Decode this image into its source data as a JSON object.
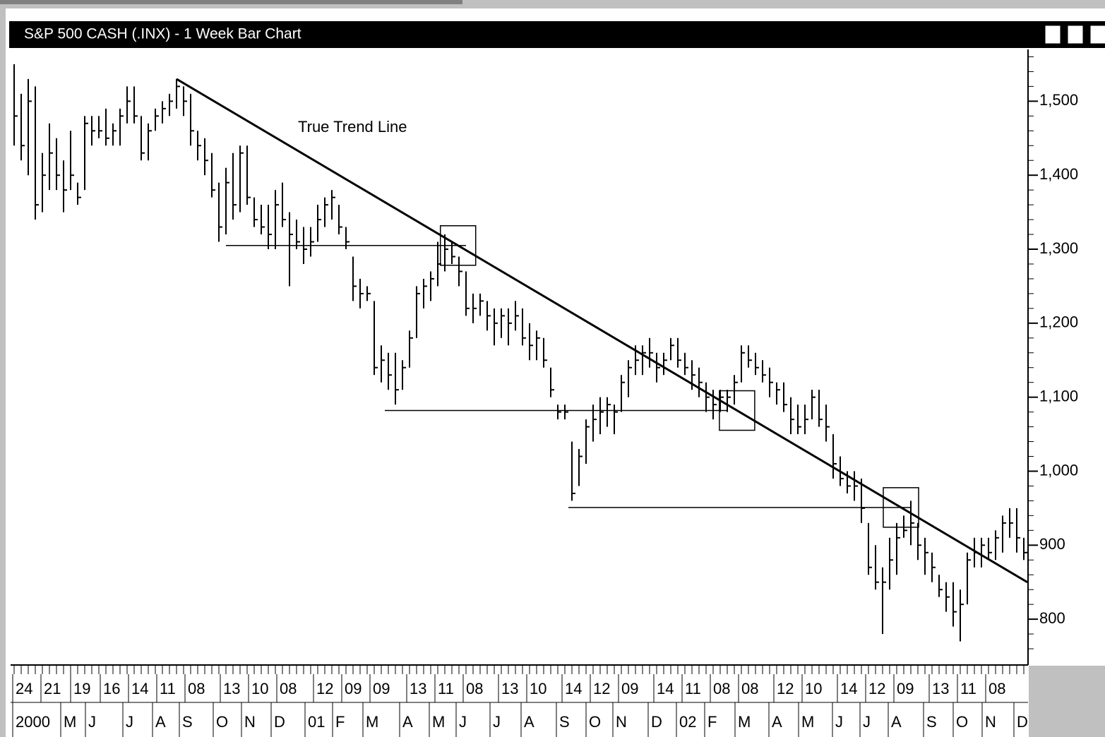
{
  "chart_data": {
    "type": "ohlc",
    "title": "S&P 500 CASH (.INX) - 1 Week Bar Chart",
    "color": "#000000",
    "high": [
      1550,
      1510,
      1530,
      1520,
      1430,
      1470,
      1450,
      1420,
      1460,
      1390,
      1480,
      1480,
      1480,
      1490,
      1470,
      1490,
      1520,
      1520,
      1480,
      1470,
      1490,
      1500,
      1510,
      1530,
      1520,
      1510,
      1460,
      1450,
      1430,
      1390,
      1410,
      1430,
      1440,
      1440,
      1370,
      1360,
      1360,
      1380,
      1390,
      1350,
      1340,
      1330,
      1330,
      1360,
      1370,
      1380,
      1360,
      1330,
      1290,
      1260,
      1250,
      1230,
      1170,
      1160,
      1160,
      1150,
      1190,
      1250,
      1260,
      1270,
      1310,
      1320,
      1310,
      1290,
      1270,
      1240,
      1240,
      1230,
      1220,
      1220,
      1220,
      1230,
      1220,
      1200,
      1190,
      1180,
      1140,
      1090,
      1090,
      1040,
      1030,
      1070,
      1090,
      1100,
      1100,
      1090,
      1130,
      1150,
      1170,
      1170,
      1180,
      1160,
      1160,
      1180,
      1180,
      1160,
      1150,
      1140,
      1120,
      1110,
      1110,
      1110,
      1130,
      1170,
      1170,
      1160,
      1150,
      1140,
      1120,
      1120,
      1100,
      1090,
      1090,
      1110,
      1110,
      1090,
      1050,
      1020,
      1000,
      1000,
      990,
      930,
      900,
      870,
      910,
      930,
      940,
      960,
      930,
      910,
      890,
      860,
      850,
      850,
      840,
      890,
      910,
      910,
      910,
      920,
      940,
      950,
      950,
      910
    ],
    "low": [
      1440,
      1420,
      1400,
      1340,
      1350,
      1380,
      1380,
      1350,
      1380,
      1360,
      1380,
      1440,
      1450,
      1440,
      1440,
      1440,
      1470,
      1470,
      1420,
      1420,
      1460,
      1470,
      1480,
      1490,
      1480,
      1440,
      1420,
      1400,
      1370,
      1310,
      1320,
      1340,
      1350,
      1360,
      1330,
      1320,
      1300,
      1300,
      1330,
      1250,
      1300,
      1280,
      1290,
      1310,
      1330,
      1340,
      1320,
      1300,
      1230,
      1220,
      1230,
      1130,
      1120,
      1110,
      1090,
      1110,
      1140,
      1180,
      1220,
      1230,
      1250,
      1270,
      1280,
      1250,
      1210,
      1200,
      1210,
      1190,
      1170,
      1180,
      1170,
      1190,
      1170,
      1150,
      1150,
      1140,
      1100,
      1070,
      1070,
      960,
      980,
      1010,
      1040,
      1050,
      1060,
      1050,
      1080,
      1100,
      1130,
      1130,
      1140,
      1120,
      1130,
      1150,
      1140,
      1130,
      1110,
      1100,
      1080,
      1070,
      1080,
      1080,
      1090,
      1120,
      1140,
      1130,
      1120,
      1100,
      1090,
      1080,
      1050,
      1050,
      1050,
      1070,
      1060,
      1040,
      990,
      980,
      970,
      960,
      930,
      860,
      840,
      780,
      840,
      860,
      910,
      900,
      880,
      860,
      850,
      830,
      810,
      790,
      770,
      820,
      870,
      870,
      880,
      880,
      890,
      910,
      890,
      880
    ],
    "close": [
      1480,
      1440,
      1500,
      1360,
      1400,
      1430,
      1400,
      1380,
      1400,
      1370,
      1470,
      1460,
      1460,
      1450,
      1460,
      1480,
      1500,
      1480,
      1430,
      1460,
      1480,
      1490,
      1500,
      1520,
      1500,
      1460,
      1440,
      1420,
      1380,
      1330,
      1390,
      1360,
      1430,
      1370,
      1340,
      1330,
      1320,
      1360,
      1340,
      1320,
      1310,
      1300,
      1310,
      1340,
      1360,
      1370,
      1330,
      1310,
      1250,
      1240,
      1240,
      1140,
      1150,
      1130,
      1110,
      1140,
      1180,
      1240,
      1250,
      1260,
      1280,
      1300,
      1290,
      1270,
      1220,
      1220,
      1230,
      1210,
      1200,
      1210,
      1200,
      1210,
      1180,
      1170,
      1180,
      1150,
      1110,
      1080,
      1080,
      970,
      1020,
      1060,
      1070,
      1080,
      1090,
      1080,
      1120,
      1140,
      1150,
      1160,
      1160,
      1140,
      1150,
      1170,
      1150,
      1140,
      1130,
      1120,
      1100,
      1090,
      1100,
      1100,
      1120,
      1160,
      1150,
      1140,
      1130,
      1120,
      1110,
      1090,
      1070,
      1060,
      1070,
      1100,
      1070,
      1060,
      1010,
      990,
      980,
      980,
      950,
      870,
      850,
      850,
      880,
      910,
      920,
      930,
      900,
      890,
      870,
      840,
      830,
      810,
      820,
      880,
      890,
      900,
      890,
      910,
      930,
      930,
      910,
      890
    ],
    "ylim": [
      740,
      1570
    ],
    "yticks": [
      800,
      900,
      {
        "value": 1000,
        "label": "1,000"
      },
      {
        "value": 1100,
        "label": "1,100"
      },
      {
        "value": 1200,
        "label": "1,200"
      },
      {
        "value": 1300,
        "label": "1,300"
      },
      {
        "value": 1400,
        "label": "1,400"
      },
      {
        "value": 1500,
        "label": "1,500"
      }
    ],
    "trend_line": {
      "label": "True Trend Line",
      "start": [
        23,
        1530
      ],
      "end": [
        143.5,
        850
      ]
    },
    "support_lines": [
      {
        "start": [
          30,
          1305
        ],
        "end": [
          64,
          1305
        ]
      },
      {
        "start": [
          52.5,
          1082
        ],
        "end": [
          101,
          1082
        ]
      },
      {
        "start": [
          78.5,
          951
        ],
        "end": [
          127,
          951
        ]
      }
    ],
    "date_labels": {
      "days": [
        "24",
        "21",
        "19",
        "16",
        "14",
        "11",
        "08",
        "13",
        "10",
        "08",
        "12",
        "09",
        "09",
        "13",
        "11",
        "08",
        "13",
        "10",
        "14",
        "12",
        "09",
        "14",
        "11",
        "08",
        "08",
        "12",
        "10",
        "14",
        "12",
        "09",
        "13",
        "11",
        "08"
      ],
      "months": [
        "2000",
        "M",
        "J",
        "J",
        "A",
        "S",
        "O",
        "N",
        "D",
        "01",
        "F",
        "M",
        "A",
        "M",
        "J",
        "J",
        "A",
        "S",
        "O",
        "N",
        "D",
        "02",
        "F",
        "M",
        "A",
        "M",
        "J",
        "J",
        "A",
        "S",
        "O",
        "N",
        "D"
      ]
    }
  }
}
